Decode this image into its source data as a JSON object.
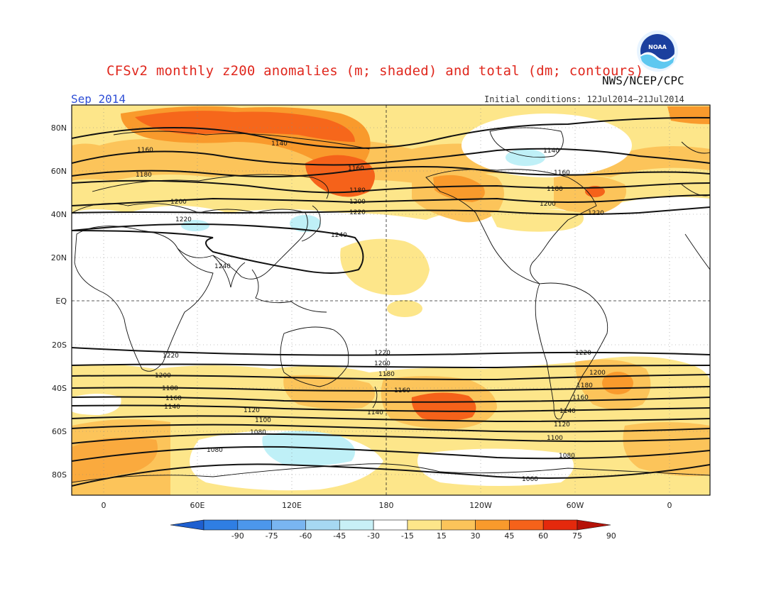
{
  "title": "CFSv2 monthly z200 anomalies (m; shaded) and total (dm; contours)",
  "agency": "NWS/NCEP/CPC",
  "logo_text": "NOAA",
  "period": "Sep 2014",
  "initial_conditions": "Initial conditions: 12Jul2014—21Jul2014",
  "lat_labels": [
    "80N",
    "60N",
    "40N",
    "20N",
    "EQ",
    "20S",
    "40S",
    "60S",
    "80S"
  ],
  "lon_labels": [
    "0",
    "60E",
    "120E",
    "180",
    "120W",
    "60W",
    "0"
  ],
  "colorbar": {
    "ticks": [
      "-90",
      "-75",
      "-60",
      "-45",
      "-30",
      "-15",
      "15",
      "30",
      "45",
      "60",
      "75",
      "90"
    ],
    "colors": [
      "#1e5fcf",
      "#2f7ee3",
      "#4c97ec",
      "#79b5f1",
      "#a6d8f2",
      "#c8f0f6",
      "#ffffff",
      "#fde68a",
      "#fcc45a",
      "#f99a2c",
      "#f5621a",
      "#e4290c",
      "#b51208"
    ]
  },
  "contour_labels": {
    "north": [
      "1140",
      "1160",
      "1180",
      "1200",
      "1220",
      "1240"
    ],
    "south": [
      "1220",
      "1200",
      "1180",
      "1160",
      "1140",
      "1120",
      "1100",
      "1080",
      "1060"
    ]
  },
  "colors": {
    "title": "#e0281e",
    "period": "#2f4fd6",
    "pos1": "#fde68a",
    "pos2": "#fcc45a",
    "pos3": "#f99a2c",
    "pos4": "#f5621a",
    "neg1": "#bff0f7"
  }
}
